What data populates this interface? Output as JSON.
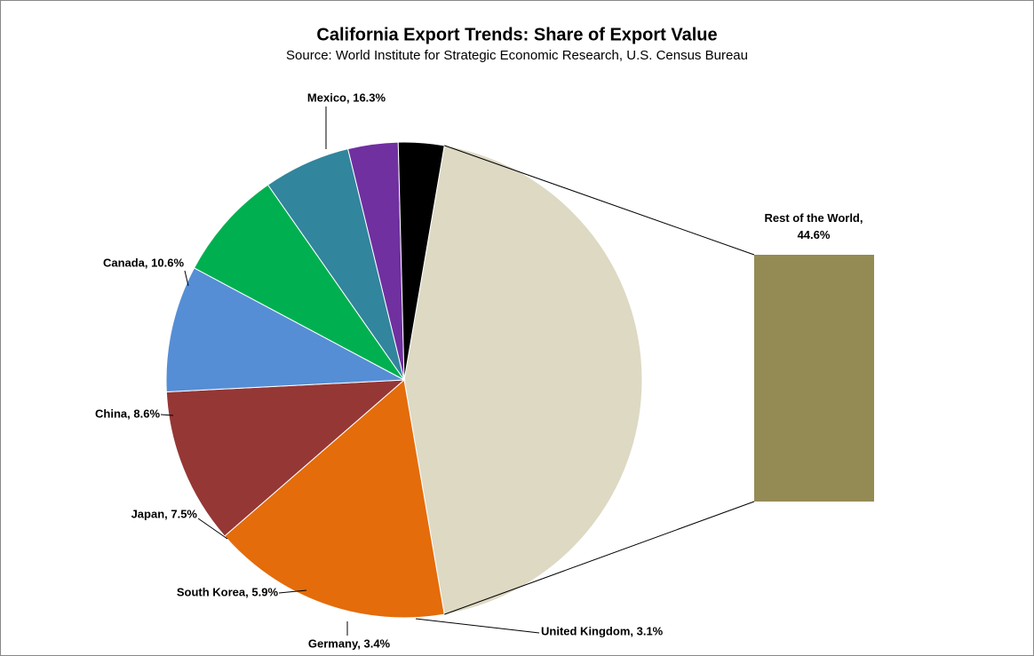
{
  "chart_data": {
    "type": "pie-of-bar",
    "title": "California Export Trends: Share of Export Value",
    "subtitle": "Source: World Institute for Strategic Economic Research, U.S. Census Bureau",
    "values": [
      44.6,
      16.3,
      10.6,
      8.6,
      7.5,
      5.9,
      3.4,
      3.1
    ],
    "value_labels": [
      "Rest of the World, 44.6%",
      "Mexico, 16.3%",
      "Canada, 10.6%",
      "China, 8.6%",
      "Japan, 7.5%",
      "South Korea, 5.9%",
      "Germany, 3.4%",
      "United Kingdom, 3.1%"
    ],
    "colors": [
      "#DDD9C3",
      "#E46C0A",
      "#953735",
      "#558ED5",
      "#00B050",
      "#31859C",
      "#7030A0",
      "#000000"
    ],
    "bar_color": "#948A54"
  }
}
